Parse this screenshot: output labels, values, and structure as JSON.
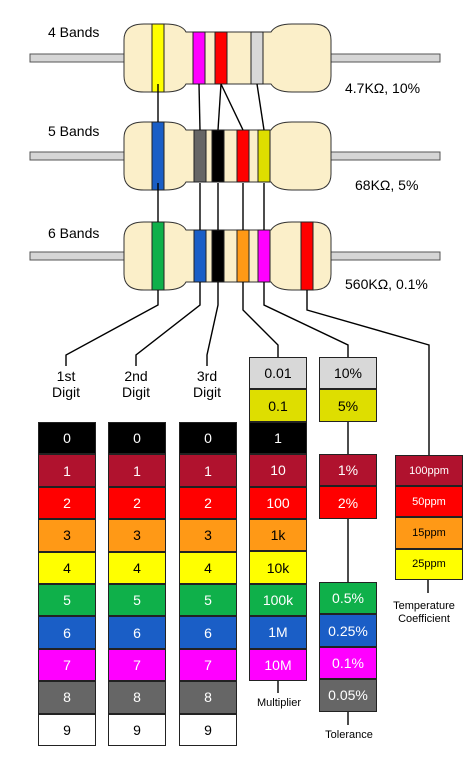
{
  "colors": {
    "black": "#000000",
    "brown": "#b0122e",
    "red": "#ff0000",
    "orange": "#ff9916",
    "yellow": "#ffff00",
    "green": "#0fb04a",
    "blue": "#1a5ec6",
    "violet": "#ff00ff",
    "grey": "#666666",
    "white": "#ffffff",
    "gold": "#dede00",
    "silver": "#d8d8d8",
    "body": "#fbefc9",
    "lead": "#d6d6d6"
  },
  "resistors": [
    {
      "label": "4 Bands",
      "value": "4.7KΩ, 10%",
      "bands": [
        "yellow",
        "violet",
        "red",
        "silver"
      ]
    },
    {
      "label": "5 Bands",
      "value": "68KΩ, 5%",
      "bands": [
        "blue",
        "grey",
        "black",
        "red",
        "gold"
      ]
    },
    {
      "label": "6 Bands",
      "value": "560KΩ, 0.1%",
      "bands": [
        "green",
        "blue",
        "black",
        "orange",
        "violet",
        "red"
      ]
    }
  ],
  "columns": {
    "digit1": {
      "header": "1st\nDigit"
    },
    "digit2": {
      "header": "2nd\nDigit"
    },
    "digit3": {
      "header": "3rd\nDigit"
    },
    "multiplier": {
      "caption": "Multiplier"
    },
    "tolerance": {
      "caption": "Tolerance"
    },
    "tempco": {
      "caption": "Temperature\nCoefficient"
    }
  },
  "digit_rows": [
    {
      "color": "black",
      "text": "0"
    },
    {
      "color": "brown",
      "text": "1"
    },
    {
      "color": "red",
      "text": "2"
    },
    {
      "color": "orange",
      "text": "3"
    },
    {
      "color": "yellow",
      "text": "4"
    },
    {
      "color": "green",
      "text": "5"
    },
    {
      "color": "blue",
      "text": "6"
    },
    {
      "color": "violet",
      "text": "7"
    },
    {
      "color": "grey",
      "text": "8"
    },
    {
      "color": "white",
      "text": "9"
    }
  ],
  "multiplier_rows": [
    {
      "color": "silver",
      "text": "0.01"
    },
    {
      "color": "gold",
      "text": "0.1"
    },
    {
      "color": "black",
      "text": "1"
    },
    {
      "color": "brown",
      "text": "10"
    },
    {
      "color": "red",
      "text": "100"
    },
    {
      "color": "orange",
      "text": "1k"
    },
    {
      "color": "yellow",
      "text": "10k"
    },
    {
      "color": "green",
      "text": "100k"
    },
    {
      "color": "blue",
      "text": "1M"
    },
    {
      "color": "violet",
      "text": "10M"
    }
  ],
  "tolerance_rows": [
    {
      "color": "silver",
      "text": "10%"
    },
    {
      "color": "gold",
      "text": "5%"
    },
    {
      "color": "brown",
      "text": "1%"
    },
    {
      "color": "red",
      "text": "2%"
    },
    {
      "color": "green",
      "text": "0.5%"
    },
    {
      "color": "blue",
      "text": "0.25%"
    },
    {
      "color": "violet",
      "text": "0.1%"
    },
    {
      "color": "grey",
      "text": "0.05%"
    }
  ],
  "tempco_rows": [
    {
      "color": "brown",
      "text": "100ppm"
    },
    {
      "color": "red",
      "text": "50ppm"
    },
    {
      "color": "orange",
      "text": "15ppm"
    },
    {
      "color": "yellow",
      "text": "25ppm"
    }
  ]
}
